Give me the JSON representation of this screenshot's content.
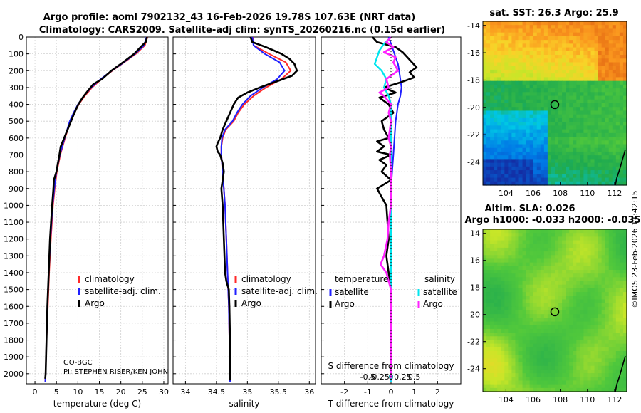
{
  "title_line1": "Argo profile: aoml 7902132_43 16-Feb-2026 19.78S 107.63E (NRT data)",
  "title_line2": "Climatology: CARS2009. Satellite-adj clim: synTS_20260216.nc (0.15d earlier)",
  "colors": {
    "climatology": "#ff2a2a",
    "satellite": "#2020ff",
    "argo": "#000000",
    "sat_salinity": "#00e5ee",
    "argo_salinity": "#ff22ff"
  },
  "chart_data": [
    {
      "type": "line",
      "name": "temperature-panel",
      "xlabel": "temperature (deg C)",
      "ylabel": "",
      "xlim": [
        -2,
        31
      ],
      "ylim": [
        2060,
        0
      ],
      "xticks": [
        0,
        5,
        10,
        15,
        20,
        25,
        30
      ],
      "yticks": [
        0,
        100,
        200,
        300,
        400,
        500,
        600,
        700,
        800,
        900,
        1000,
        1100,
        1200,
        1300,
        1400,
        1500,
        1600,
        1700,
        1800,
        1900,
        2000
      ],
      "legend": [
        "climatology",
        "satellite-adj. clim.",
        "Argo"
      ],
      "footnote": [
        "GO-BGC",
        "PI: STEPHEN RISER/KEN JOHN"
      ],
      "series": [
        {
          "name": "climatology",
          "depth": [
            0,
            50,
            100,
            150,
            200,
            250,
            300,
            350,
            400,
            450,
            500,
            600,
            700,
            800,
            900,
            1000,
            1200,
            1400,
            1600,
            1800,
            2000,
            2050
          ],
          "values": [
            26.2,
            25.6,
            23.5,
            20.8,
            18.0,
            15.5,
            13.3,
            11.6,
            10.2,
            9.2,
            8.3,
            7.0,
            5.9,
            5.1,
            4.6,
            4.2,
            3.7,
            3.3,
            3.0,
            2.7,
            2.5,
            2.4
          ]
        },
        {
          "name": "satellite-adj. clim.",
          "depth": [
            0,
            50,
            100,
            150,
            200,
            250,
            300,
            350,
            400,
            450,
            500,
            600,
            700,
            800,
            900,
            1000,
            1200,
            1400,
            1600,
            1800,
            2000,
            2050
          ],
          "values": [
            26.0,
            25.4,
            23.3,
            20.7,
            17.9,
            15.3,
            13.1,
            11.4,
            10.0,
            9.0,
            8.1,
            6.9,
            5.8,
            5.0,
            4.5,
            4.1,
            3.6,
            3.2,
            2.9,
            2.7,
            2.5,
            2.4
          ]
        },
        {
          "name": "Argo",
          "depth": [
            0,
            30,
            60,
            100,
            150,
            200,
            250,
            280,
            320,
            360,
            400,
            450,
            500,
            550,
            600,
            650,
            700,
            800,
            850,
            900,
            1000,
            1200,
            1400,
            1600,
            1800,
            2000,
            2030
          ],
          "values": [
            26.1,
            25.8,
            24.6,
            23.1,
            20.5,
            17.8,
            15.6,
            13.6,
            12.3,
            11.1,
            10.1,
            9.2,
            8.4,
            7.6,
            6.8,
            6.0,
            5.7,
            5.0,
            4.4,
            4.3,
            4.0,
            3.5,
            3.2,
            2.9,
            2.7,
            2.5,
            2.4
          ]
        }
      ]
    },
    {
      "type": "line",
      "name": "salinity-panel",
      "xlabel": "salinity",
      "ylabel": "",
      "xlim": [
        33.8,
        36.1
      ],
      "ylim": [
        2060,
        0
      ],
      "xticks": [
        34,
        34.5,
        35,
        35.5,
        36
      ],
      "legend": [
        "climatology",
        "satellite-adj. clim.",
        "Argo"
      ],
      "series": [
        {
          "name": "climatology",
          "depth": [
            0,
            50,
            100,
            150,
            200,
            250,
            300,
            350,
            400,
            450,
            500,
            550,
            600,
            650,
            700,
            800,
            900,
            1000,
            1200,
            1400,
            1600,
            1800,
            2000,
            2050
          ],
          "values": [
            35.1,
            35.1,
            35.35,
            35.62,
            35.7,
            35.55,
            35.3,
            35.1,
            34.95,
            34.85,
            34.78,
            34.65,
            34.6,
            34.58,
            34.58,
            34.6,
            34.62,
            34.64,
            34.66,
            34.68,
            34.7,
            34.71,
            34.72,
            34.72
          ]
        },
        {
          "name": "satellite-adj. clim.",
          "depth": [
            0,
            50,
            100,
            150,
            200,
            250,
            300,
            350,
            400,
            450,
            500,
            550,
            600,
            650,
            700,
            800,
            900,
            1000,
            1200,
            1400,
            1600,
            1800,
            2000,
            2050
          ],
          "values": [
            35.08,
            35.1,
            35.28,
            35.52,
            35.6,
            35.48,
            35.25,
            35.05,
            34.92,
            34.83,
            34.76,
            34.64,
            34.59,
            34.58,
            34.58,
            34.6,
            34.62,
            34.64,
            34.66,
            34.68,
            34.7,
            34.71,
            34.72,
            34.72
          ]
        },
        {
          "name": "Argo",
          "depth": [
            0,
            30,
            60,
            100,
            130,
            160,
            200,
            230,
            260,
            300,
            330,
            360,
            400,
            450,
            500,
            550,
            600,
            630,
            650,
            680,
            700,
            750,
            800,
            850,
            900,
            1000,
            1200,
            1400,
            1450,
            1500,
            1600,
            1800,
            2000,
            2040
          ],
          "values": [
            35.05,
            35.08,
            35.3,
            35.55,
            35.68,
            35.76,
            35.8,
            35.72,
            35.5,
            35.2,
            35.0,
            34.85,
            34.78,
            34.72,
            34.66,
            34.6,
            34.56,
            34.52,
            34.5,
            34.52,
            34.56,
            34.6,
            34.62,
            34.6,
            34.58,
            34.6,
            34.62,
            34.64,
            34.66,
            34.7,
            34.71,
            34.72,
            34.72,
            34.72
          ]
        }
      ]
    },
    {
      "type": "line",
      "name": "difference-panel",
      "xlabel": "T difference from climatology",
      "xlabel_top": "S difference from climatology",
      "xlim": [
        -3,
        3
      ],
      "ylim": [
        2060,
        0
      ],
      "xticks": [
        -2,
        -1,
        0,
        1,
        2
      ],
      "top_ticks": [
        {
          "value": -1,
          "label": "-0.5"
        },
        {
          "value": -0.5,
          "label": "-0.25"
        },
        {
          "value": 0,
          "label": "0"
        },
        {
          "value": 0.5,
          "label": "0.25"
        },
        {
          "value": 1,
          "label": "0.5"
        }
      ],
      "legend_headers": [
        "temperature",
        "salinity"
      ],
      "legend": [
        "satellite",
        "Argo",
        "satellite",
        "Argo"
      ],
      "series": [
        {
          "name": "satellite (temperature)",
          "depth": [
            0,
            40,
            80,
            120,
            160,
            200,
            250,
            300,
            350,
            400,
            450,
            500,
            600,
            700,
            800,
            900,
            1000,
            1200,
            1400,
            1600,
            1800,
            2000,
            2050
          ],
          "values": [
            -0.1,
            0.0,
            0.1,
            0.2,
            0.3,
            0.35,
            0.4,
            0.45,
            0.4,
            0.3,
            0.25,
            0.2,
            0.15,
            0.1,
            0.05,
            0.0,
            0.0,
            0.0,
            0.0,
            0.0,
            0.0,
            0.0,
            0.0
          ]
        },
        {
          "name": "Argo (temperature)",
          "depth": [
            0,
            30,
            60,
            90,
            120,
            150,
            180,
            210,
            240,
            270,
            300,
            330,
            360,
            400,
            450,
            500,
            550,
            600,
            620,
            650,
            680,
            700,
            730,
            760,
            800,
            850,
            900,
            950,
            1000,
            1100,
            1200,
            1300,
            1400,
            1500,
            1600,
            1800,
            2000,
            2040
          ],
          "values": [
            -0.8,
            -0.6,
            0.2,
            0.5,
            0.7,
            0.9,
            1.1,
            0.8,
            1.0,
            0.4,
            -0.3,
            0.2,
            -0.5,
            -0.1,
            0.1,
            -0.4,
            -0.3,
            -0.1,
            -0.6,
            -0.3,
            -0.6,
            0.0,
            -0.5,
            -0.2,
            -0.4,
            0.0,
            -0.6,
            -0.4,
            -0.2,
            -0.15,
            -0.1,
            -0.2,
            -0.1,
            0.0,
            0.0,
            0.0,
            0.0,
            0.0
          ]
        },
        {
          "name": "satellite (salinity)",
          "depth": [
            0,
            40,
            80,
            120,
            160,
            200,
            250,
            300,
            350,
            400,
            450,
            500,
            600,
            700,
            800,
            900,
            1000,
            1200,
            1400,
            1600,
            1800,
            2000,
            2050
          ],
          "values": [
            0.0,
            -0.3,
            -0.5,
            -0.6,
            -0.7,
            -0.4,
            -0.2,
            -0.3,
            -0.1,
            0.0,
            0.0,
            0.0,
            0.0,
            0.0,
            0.0,
            0.0,
            0.0,
            0.0,
            0.0,
            0.0,
            0.0,
            0.0,
            0.0
          ]
        },
        {
          "name": "Argo (salinity)",
          "depth": [
            0,
            30,
            60,
            90,
            120,
            150,
            200,
            250,
            300,
            330,
            350,
            400,
            450,
            500,
            550,
            600,
            650,
            700,
            800,
            900,
            1000,
            1100,
            1200,
            1300,
            1350,
            1400,
            1450,
            1500,
            1600,
            1800,
            2000,
            2040
          ],
          "values": [
            0.0,
            -0.2,
            0.1,
            -0.3,
            0.2,
            0.1,
            0.3,
            -0.2,
            -0.1,
            -0.5,
            -0.3,
            0.0,
            -0.1,
            0.0,
            -0.05,
            -0.1,
            0.0,
            -0.05,
            0.0,
            0.0,
            0.0,
            -0.1,
            -0.15,
            -0.3,
            -0.45,
            -0.2,
            -0.1,
            0.0,
            0.0,
            0.0,
            0.0,
            0.0
          ]
        }
      ]
    }
  ],
  "maps": [
    {
      "name": "sst-map",
      "title": "sat. SST: 26.3 Argo: 25.9",
      "title2": "",
      "xticks": [
        "104",
        "106",
        "108",
        "110",
        "112"
      ],
      "yticks": [
        "-14",
        "-16",
        "-18",
        "-20",
        "-22",
        "-24"
      ],
      "marker_lon": 107.6,
      "marker_lat": -19.8
    },
    {
      "name": "sla-map",
      "title": "Altim. SLA: 0.026",
      "title2": "Argo h1000: -0.033 h2000: -0.035",
      "xticks": [
        "104",
        "106",
        "108",
        "110",
        "112"
      ],
      "yticks": [
        "-14",
        "-16",
        "-18",
        "-20",
        "-22",
        "-24"
      ],
      "marker_lon": 107.6,
      "marker_lat": -19.8
    }
  ],
  "watermark": "©IMOS 23-Feb-2026 11:42:15"
}
